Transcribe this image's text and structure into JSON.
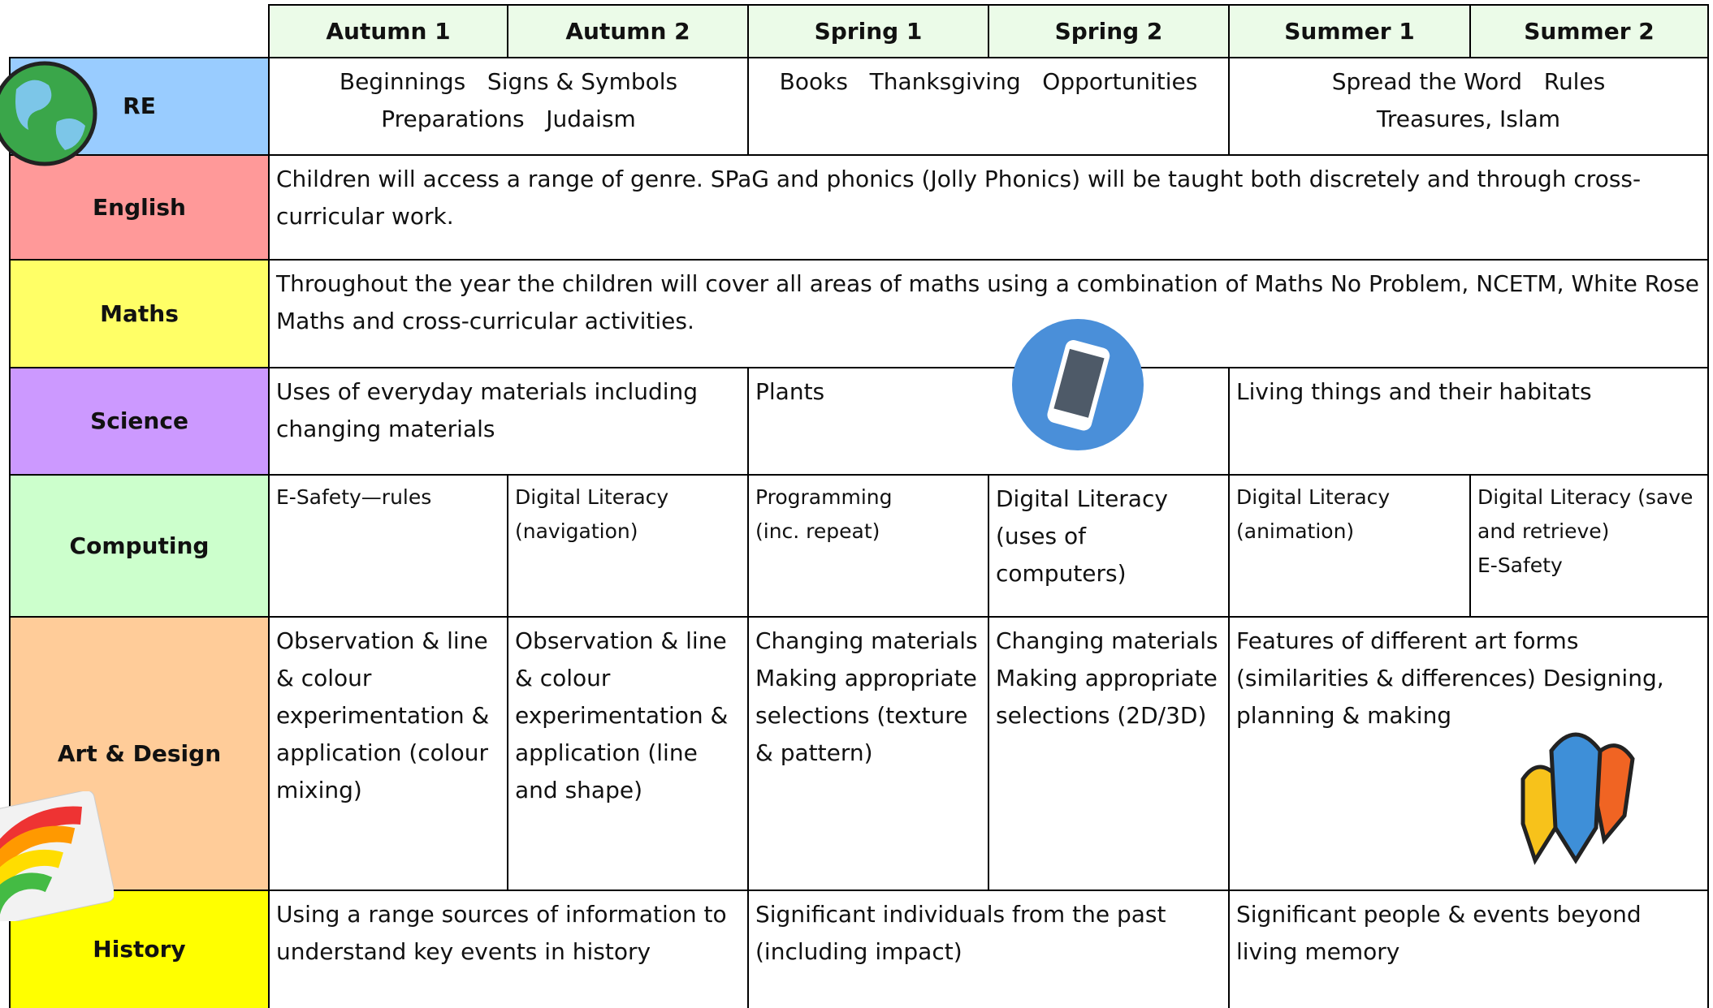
{
  "header": {
    "columns": [
      "Autumn 1",
      "Autumn 2",
      "Spring 1",
      "Spring 2",
      "Summer 1",
      "Summer 2"
    ]
  },
  "rows": [
    {
      "subject": "RE",
      "color": "#99ccff",
      "cells": [
        [
          "Beginnings   Signs & Symbols",
          "Preparations   Judaism"
        ],
        [
          "Books   Thanksgiving   Opportunities"
        ],
        [
          "Spread the Word   Rules",
          "Treasures, Islam"
        ]
      ]
    },
    {
      "subject": "English",
      "color": "#ff9999",
      "cells": [
        [
          "Children will access a range of genre. SPaG and phonics (Jolly Phonics) will be taught both discretely and through cross-curricular work."
        ]
      ]
    },
    {
      "subject": "Maths",
      "color": "#ffff66",
      "cells": [
        [
          "Throughout the year the children will cover all areas of maths using a combination of Maths No Problem, NCETM, White Rose Maths and cross-curricular activities."
        ]
      ]
    },
    {
      "subject": "Science",
      "color": "#cc99ff",
      "cells": [
        [
          "Uses of everyday materials including changing materials"
        ],
        [
          "Plants"
        ],
        [
          "Living things and their habitats"
        ]
      ]
    },
    {
      "subject": "Computing",
      "color": "#ccffcc",
      "cells": [
        [
          "E-Safety—rules"
        ],
        [
          "Digital Literacy (navigation)"
        ],
        [
          "Programming",
          "(inc. repeat)"
        ],
        [
          "Digital Literacy",
          "(uses of computers)"
        ],
        [
          "Digital Literacy (animation)"
        ],
        [
          "Digital Literacy (save and retrieve)",
          "E-Safety"
        ]
      ]
    },
    {
      "subject": "Art & Design",
      "color": "#ffcc99",
      "cells": [
        [
          "Observation & line & colour experimentation & application (colour mixing)"
        ],
        [
          "Observation & line & colour experimentation & application (line and shape)"
        ],
        [
          "Changing materials Making appropriate selections (texture & pattern)"
        ],
        [
          "Changing materials Making appropriate selections (2D/3D)"
        ],
        [
          "Features of different art forms (similarities & differences) Designing, planning & making"
        ]
      ]
    },
    {
      "subject": "History",
      "color": "#ffff00",
      "cells": [
        [
          "Using a range sources of information to understand key events in history"
        ],
        [
          "Significant individuals from the past (including impact)"
        ],
        [
          "Significant people & events beyond living memory"
        ]
      ]
    }
  ]
}
